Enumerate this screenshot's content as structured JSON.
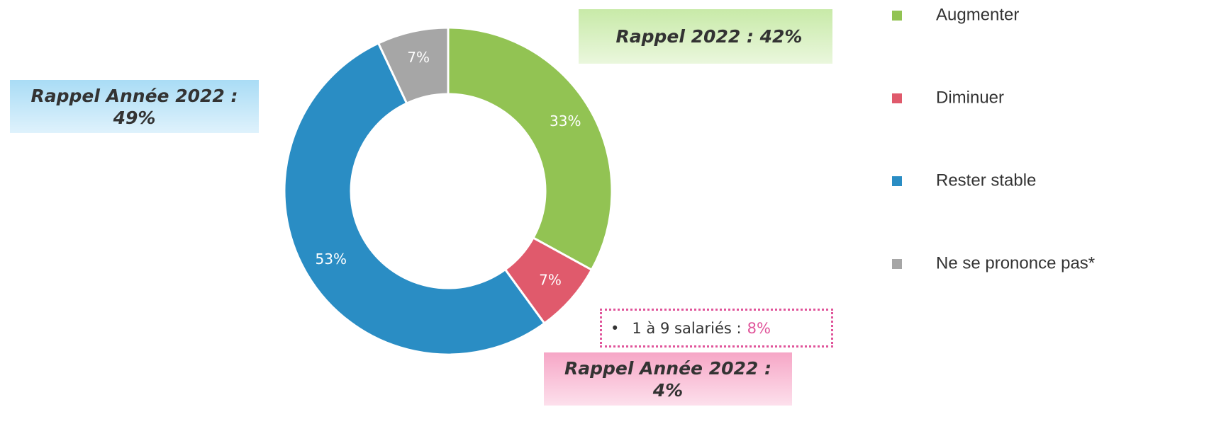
{
  "chart_data": {
    "type": "donut",
    "categories": [
      "Augmenter",
      "Diminuer",
      "Rester stable",
      "Ne se prononce pas*"
    ],
    "values": [
      33,
      7,
      53,
      7
    ],
    "value_labels": [
      "33%",
      "7%",
      "53%",
      "7%"
    ],
    "colors": [
      "#92c353",
      "#e05a6c",
      "#2a8dc4",
      "#a6a6a6"
    ],
    "legend": "right",
    "annotations": [
      "Rappel 2022 : 42%",
      "Rappel Année 2022 : 49%",
      "Rappel Année 2022 : 4%"
    ],
    "segment_note": {
      "label": "1 à 9 salariés :",
      "value_label": "8%"
    }
  }
}
